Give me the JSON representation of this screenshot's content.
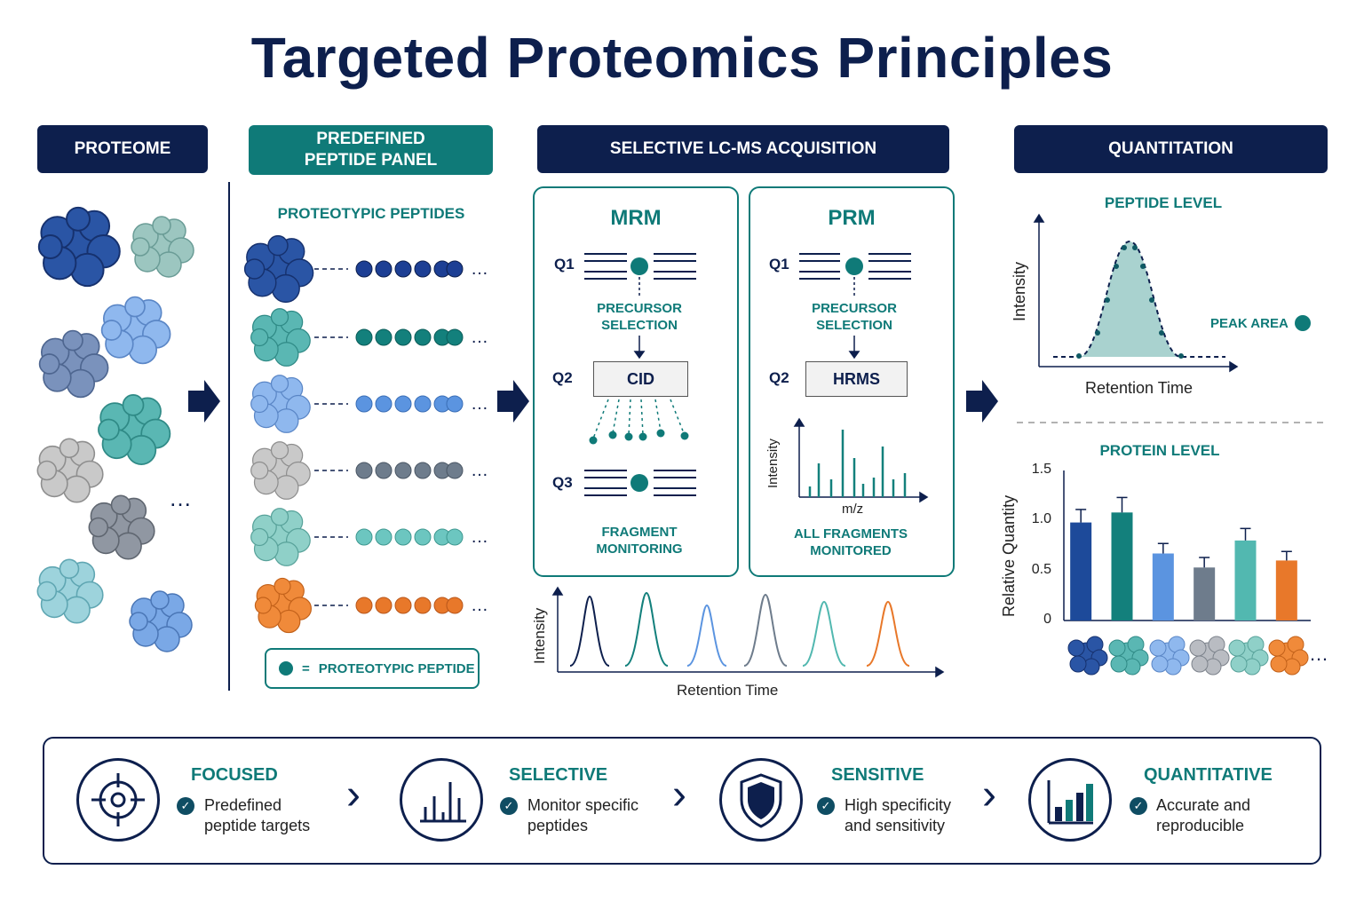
{
  "title": "Targeted Proteomics Principles",
  "headers": {
    "proteome": "PROTEOME",
    "panel": "PREDEFINED\nPEPTIDE PANEL",
    "acquisition": "SELECTIVE LC-MS ACQUISITION",
    "quantitation": "QUANTITATION"
  },
  "panel": {
    "subtitle": "PROTEOTYPIC PEPTIDES",
    "legend_eq": "=",
    "legend_text": "PROTEOTYPIC PEPTIDE"
  },
  "mrm": {
    "title": "MRM",
    "q1": "Q1",
    "q2": "Q2",
    "q3": "Q3",
    "precursor": "PRECURSOR\nSELECTION",
    "cell": "CID",
    "fragment": "FRAGMENT\nMONITORING"
  },
  "prm": {
    "title": "PRM",
    "q1": "Q1",
    "q2": "Q2",
    "precursor": "PRECURSOR\nSELECTION",
    "cell": "HRMS",
    "ylabel": "Intensity",
    "xlabel": "m/z",
    "fragments": "ALL FRAGMENTS\nMONITORED"
  },
  "chromatogram": {
    "ylabel": "Intensity",
    "xlabel": "Retention Time"
  },
  "peptide_level": {
    "title": "PEPTIDE LEVEL",
    "ylabel": "Intensity",
    "xlabel": "Retention Time",
    "peak_area": "PEAK AREA"
  },
  "colors": {
    "navy": "#0d1f4d",
    "teal": "#0f7a78",
    "series": [
      "#1d4a9a",
      "#13807c",
      "#5b94e0",
      "#6e7c8c",
      "#52b8b0",
      "#e8782a"
    ]
  },
  "chart_data": {
    "type": "bar",
    "title": "PROTEIN LEVEL",
    "xlabel": "",
    "ylabel": "Relative Quantity",
    "ylim": [
      0,
      1.5
    ],
    "yticks": [
      "0",
      "0.5",
      "1.0",
      "1.5"
    ],
    "values": [
      0.98,
      1.08,
      0.67,
      0.53,
      0.8,
      0.6
    ],
    "errors": [
      0.13,
      0.15,
      0.1,
      0.1,
      0.12,
      0.09
    ],
    "colors": [
      "#1d4a9a",
      "#13807c",
      "#5b94e0",
      "#6e7c8c",
      "#52b8b0",
      "#e8782a"
    ]
  },
  "features": [
    {
      "title": "FOCUSED",
      "text": "Predefined\npeptide targets",
      "icon": "target-icon"
    },
    {
      "title": "SELECTIVE",
      "text": "Monitor specific\npeptides",
      "icon": "bar-chart-icon"
    },
    {
      "title": "SENSITIVE",
      "text": "High specificity\nand sensitivity",
      "icon": "shield-icon"
    },
    {
      "title": "QUANTITATIVE",
      "text": "Accurate and\nreproducible",
      "icon": "rising-bars-icon"
    }
  ]
}
